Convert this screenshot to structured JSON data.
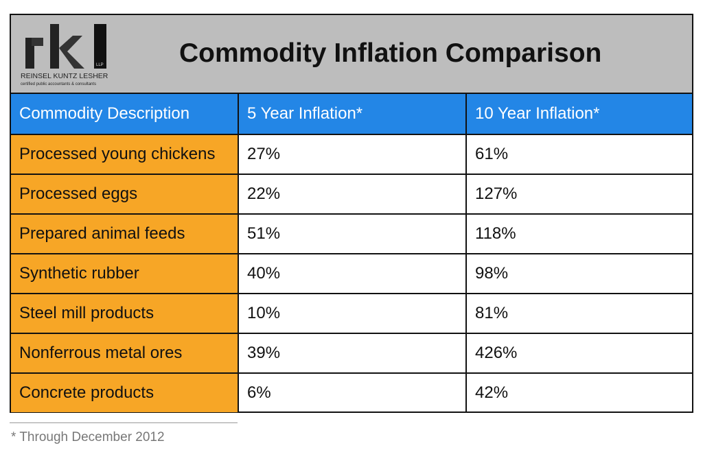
{
  "header": {
    "title": "Commodity Inflation Comparison",
    "logo": {
      "letters": "rkl",
      "suffix": "LLP",
      "name": "REINSEL KUNTZ LESHER",
      "tagline": "certified public accountants & consultants"
    }
  },
  "chart_data": {
    "type": "table",
    "title": "Commodity Inflation Comparison",
    "columns": [
      "Commodity Description",
      "5 Year Inflation*",
      "10  Year Inflation*"
    ],
    "rows": [
      [
        "Processed young chickens",
        "27%",
        "61%"
      ],
      [
        "Processed eggs",
        "22%",
        "127%"
      ],
      [
        "Prepared animal feeds",
        "51%",
        "118%"
      ],
      [
        "Synthetic rubber",
        "40%",
        "98%"
      ],
      [
        "Steel mill products",
        "10%",
        "81%"
      ],
      [
        "Nonferrous metal ores",
        "39%",
        "426%"
      ],
      [
        "Concrete products",
        "6%",
        "42%"
      ]
    ]
  },
  "footnote": "* Through December 2012",
  "colors": {
    "header_bg": "#bdbdbd",
    "column_header": "#2386e6",
    "row_label": "#f7a626"
  }
}
